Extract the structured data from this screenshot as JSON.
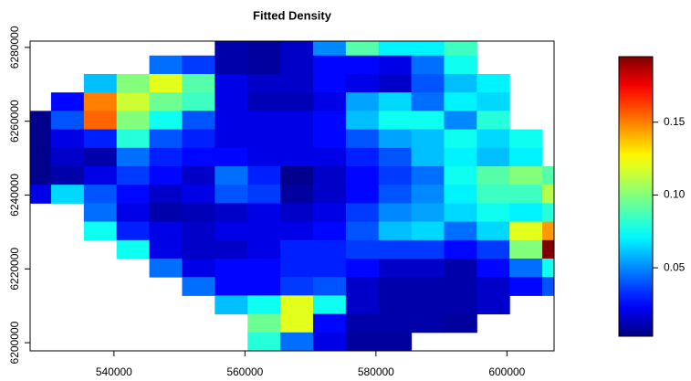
{
  "chart_data": {
    "type": "heatmap",
    "title": "Fitted Density",
    "x": [
      527900,
      532900,
      537900,
      542900,
      547900,
      552900,
      557900,
      562900,
      567900,
      572900,
      577900,
      582900,
      587900,
      592900,
      597900,
      602900,
      607900
    ],
    "y": [
      6280300,
      6275300,
      6270300,
      6265300,
      6260300,
      6255300,
      6250300,
      6245300,
      6240300,
      6235300,
      6230300,
      6225300,
      6220300,
      6215300,
      6210300,
      6205300,
      6200300
    ],
    "z": [
      [
        null,
        null,
        null,
        null,
        null,
        null,
        0.01,
        0.008,
        0.015,
        0.05,
        0.09,
        0.07,
        0.07,
        0.085,
        null,
        null,
        null
      ],
      [
        null,
        null,
        null,
        null,
        0.045,
        0.035,
        0.01,
        0.008,
        0.015,
        0.025,
        0.025,
        0.02,
        0.045,
        0.075,
        null,
        null,
        null
      ],
      [
        null,
        null,
        0.06,
        0.1,
        0.12,
        0.09,
        0.02,
        0.015,
        0.015,
        0.025,
        0.02,
        0.015,
        0.04,
        0.06,
        0.07,
        null,
        null
      ],
      [
        null,
        0.025,
        0.15,
        0.115,
        0.095,
        0.085,
        0.02,
        0.012,
        0.012,
        0.02,
        0.055,
        0.065,
        0.045,
        0.07,
        0.065,
        null,
        null
      ],
      [
        0.005,
        0.04,
        0.155,
        0.1,
        0.075,
        0.04,
        0.02,
        0.02,
        0.02,
        0.025,
        0.06,
        0.075,
        0.075,
        0.05,
        0.08,
        null,
        null
      ],
      [
        0.005,
        0.02,
        0.03,
        0.08,
        0.04,
        0.03,
        0.02,
        0.02,
        0.02,
        0.025,
        0.04,
        0.055,
        0.06,
        0.075,
        0.065,
        0.075,
        null
      ],
      [
        0.005,
        0.015,
        0.01,
        0.045,
        0.03,
        0.025,
        0.025,
        0.02,
        0.02,
        0.02,
        0.03,
        0.04,
        0.06,
        0.07,
        0.06,
        0.07,
        null
      ],
      [
        0.005,
        0.01,
        0.02,
        0.035,
        0.025,
        0.015,
        0.045,
        0.03,
        0.005,
        0.015,
        0.025,
        0.035,
        0.045,
        0.075,
        0.09,
        0.1,
        0.09
      ],
      [
        0.02,
        0.065,
        0.04,
        0.025,
        0.015,
        0.02,
        0.04,
        0.035,
        0.008,
        0.015,
        0.025,
        0.04,
        0.05,
        0.07,
        0.085,
        0.085,
        0.11
      ],
      [
        null,
        null,
        0.045,
        0.02,
        0.01,
        0.012,
        0.015,
        0.02,
        0.015,
        0.02,
        0.035,
        0.05,
        0.055,
        0.065,
        0.075,
        0.07,
        0.08
      ],
      [
        null,
        null,
        0.075,
        0.03,
        0.02,
        0.015,
        0.02,
        0.02,
        0.02,
        0.025,
        0.04,
        0.06,
        0.065,
        0.045,
        0.065,
        0.12,
        0.145
      ],
      [
        null,
        null,
        null,
        0.075,
        0.02,
        0.015,
        0.015,
        0.02,
        0.03,
        0.03,
        0.035,
        0.035,
        0.035,
        0.025,
        0.035,
        0.1,
        0.195
      ],
      [
        null,
        null,
        null,
        null,
        0.045,
        0.02,
        0.025,
        0.025,
        0.03,
        0.03,
        0.025,
        0.015,
        0.015,
        0.01,
        0.025,
        0.045,
        0.075
      ],
      [
        null,
        null,
        null,
        null,
        null,
        0.045,
        0.025,
        0.025,
        0.035,
        0.04,
        0.015,
        0.01,
        0.01,
        0.01,
        0.015,
        0.025,
        0.04
      ],
      [
        null,
        null,
        null,
        null,
        null,
        null,
        0.06,
        0.075,
        0.12,
        0.075,
        0.015,
        0.01,
        0.01,
        0.01,
        0.015,
        null,
        null
      ],
      [
        null,
        null,
        null,
        null,
        null,
        null,
        null,
        0.095,
        0.12,
        0.025,
        0.01,
        0.01,
        0.01,
        0.008,
        null,
        null,
        null
      ],
      [
        null,
        null,
        null,
        null,
        null,
        null,
        null,
        0.08,
        0.045,
        0.02,
        0.008,
        0.008,
        null,
        null,
        null,
        null,
        null
      ]
    ],
    "xlim": [
      527200,
      607200
    ],
    "ylim": [
      6197800,
      6281700
    ],
    "xticks": [
      540000,
      560000,
      580000,
      600000
    ],
    "yticks": [
      6200000,
      6220000,
      6240000,
      6260000,
      6280000
    ],
    "zlim": [
      0.003,
      0.195
    ],
    "zticks": [
      0.05,
      {
        "value": 0.1,
        "label": "0.10"
      },
      0.15
    ],
    "colormap": "jet"
  }
}
